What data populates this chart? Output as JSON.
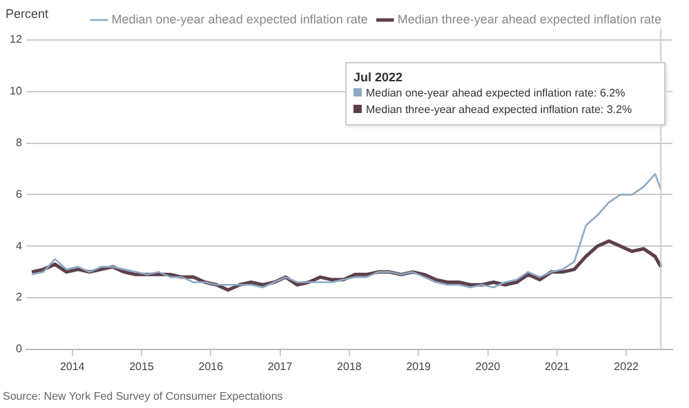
{
  "chart_data": {
    "type": "line",
    "ylabel": "Percent",
    "x": [
      "2013-06",
      "2013-08",
      "2013-10",
      "2013-12",
      "2014-02",
      "2014-04",
      "2014-06",
      "2014-08",
      "2014-10",
      "2014-12",
      "2015-02",
      "2015-04",
      "2015-06",
      "2015-08",
      "2015-10",
      "2015-12",
      "2016-02",
      "2016-04",
      "2016-06",
      "2016-08",
      "2016-10",
      "2016-12",
      "2017-02",
      "2017-04",
      "2017-06",
      "2017-08",
      "2017-10",
      "2017-12",
      "2018-02",
      "2018-04",
      "2018-06",
      "2018-08",
      "2018-10",
      "2018-12",
      "2019-02",
      "2019-04",
      "2019-06",
      "2019-08",
      "2019-10",
      "2019-12",
      "2020-02",
      "2020-04",
      "2020-06",
      "2020-08",
      "2020-10",
      "2020-12",
      "2021-02",
      "2021-04",
      "2021-06",
      "2021-08",
      "2021-10",
      "2021-12",
      "2022-02",
      "2022-04",
      "2022-06",
      "2022-07"
    ],
    "series": [
      {
        "name": "Median one-year ahead expected inflation rate",
        "color": "#8eaac4",
        "values": [
          2.9,
          3.0,
          3.5,
          3.1,
          3.2,
          3.0,
          3.2,
          3.2,
          3.1,
          3.0,
          2.9,
          3.0,
          2.8,
          2.8,
          2.6,
          2.6,
          2.5,
          2.5,
          2.5,
          2.5,
          2.4,
          2.6,
          2.8,
          2.6,
          2.6,
          2.6,
          2.6,
          2.7,
          2.8,
          2.8,
          3.0,
          3.0,
          2.9,
          3.0,
          2.8,
          2.6,
          2.5,
          2.5,
          2.4,
          2.5,
          2.4,
          2.6,
          2.7,
          3.0,
          2.8,
          3.0,
          3.1,
          3.4,
          4.8,
          5.2,
          5.7,
          6.0,
          6.0,
          6.3,
          6.8,
          6.2
        ]
      },
      {
        "name": "Median three-year ahead expected inflation rate",
        "color": "#5e3f4c",
        "values": [
          3.0,
          3.1,
          3.3,
          3.0,
          3.1,
          3.0,
          3.1,
          3.2,
          3.0,
          2.9,
          2.9,
          2.9,
          2.9,
          2.8,
          2.8,
          2.6,
          2.5,
          2.3,
          2.5,
          2.6,
          2.5,
          2.6,
          2.8,
          2.5,
          2.6,
          2.8,
          2.7,
          2.7,
          2.9,
          2.9,
          3.0,
          3.0,
          2.9,
          3.0,
          2.9,
          2.7,
          2.6,
          2.6,
          2.5,
          2.5,
          2.6,
          2.5,
          2.6,
          2.9,
          2.7,
          3.0,
          3.0,
          3.1,
          3.6,
          4.0,
          4.2,
          4.0,
          3.8,
          3.9,
          3.6,
          3.2
        ]
      }
    ],
    "xlim": [
      "2013-05",
      "2022-09"
    ],
    "xticks": [
      "2014",
      "2015",
      "2016",
      "2017",
      "2018",
      "2019",
      "2020",
      "2021",
      "2022"
    ],
    "ylim": [
      0,
      12
    ],
    "yticks": [
      0,
      2,
      4,
      6,
      8,
      10,
      12
    ],
    "grid": "y",
    "legend": "top",
    "marker": "none",
    "line_style": "solid",
    "ref_lines": [
      {
        "axis": "x",
        "value": "2022-07",
        "color": "#cccccc"
      }
    ],
    "annotations": [
      "Jul 2022",
      "Median one-year ahead expected inflation rate: 6.2%",
      "Median three-year ahead expected inflation rate: 3.2%",
      "Source: New York Fed Survey of Consumer Expectations"
    ]
  }
}
